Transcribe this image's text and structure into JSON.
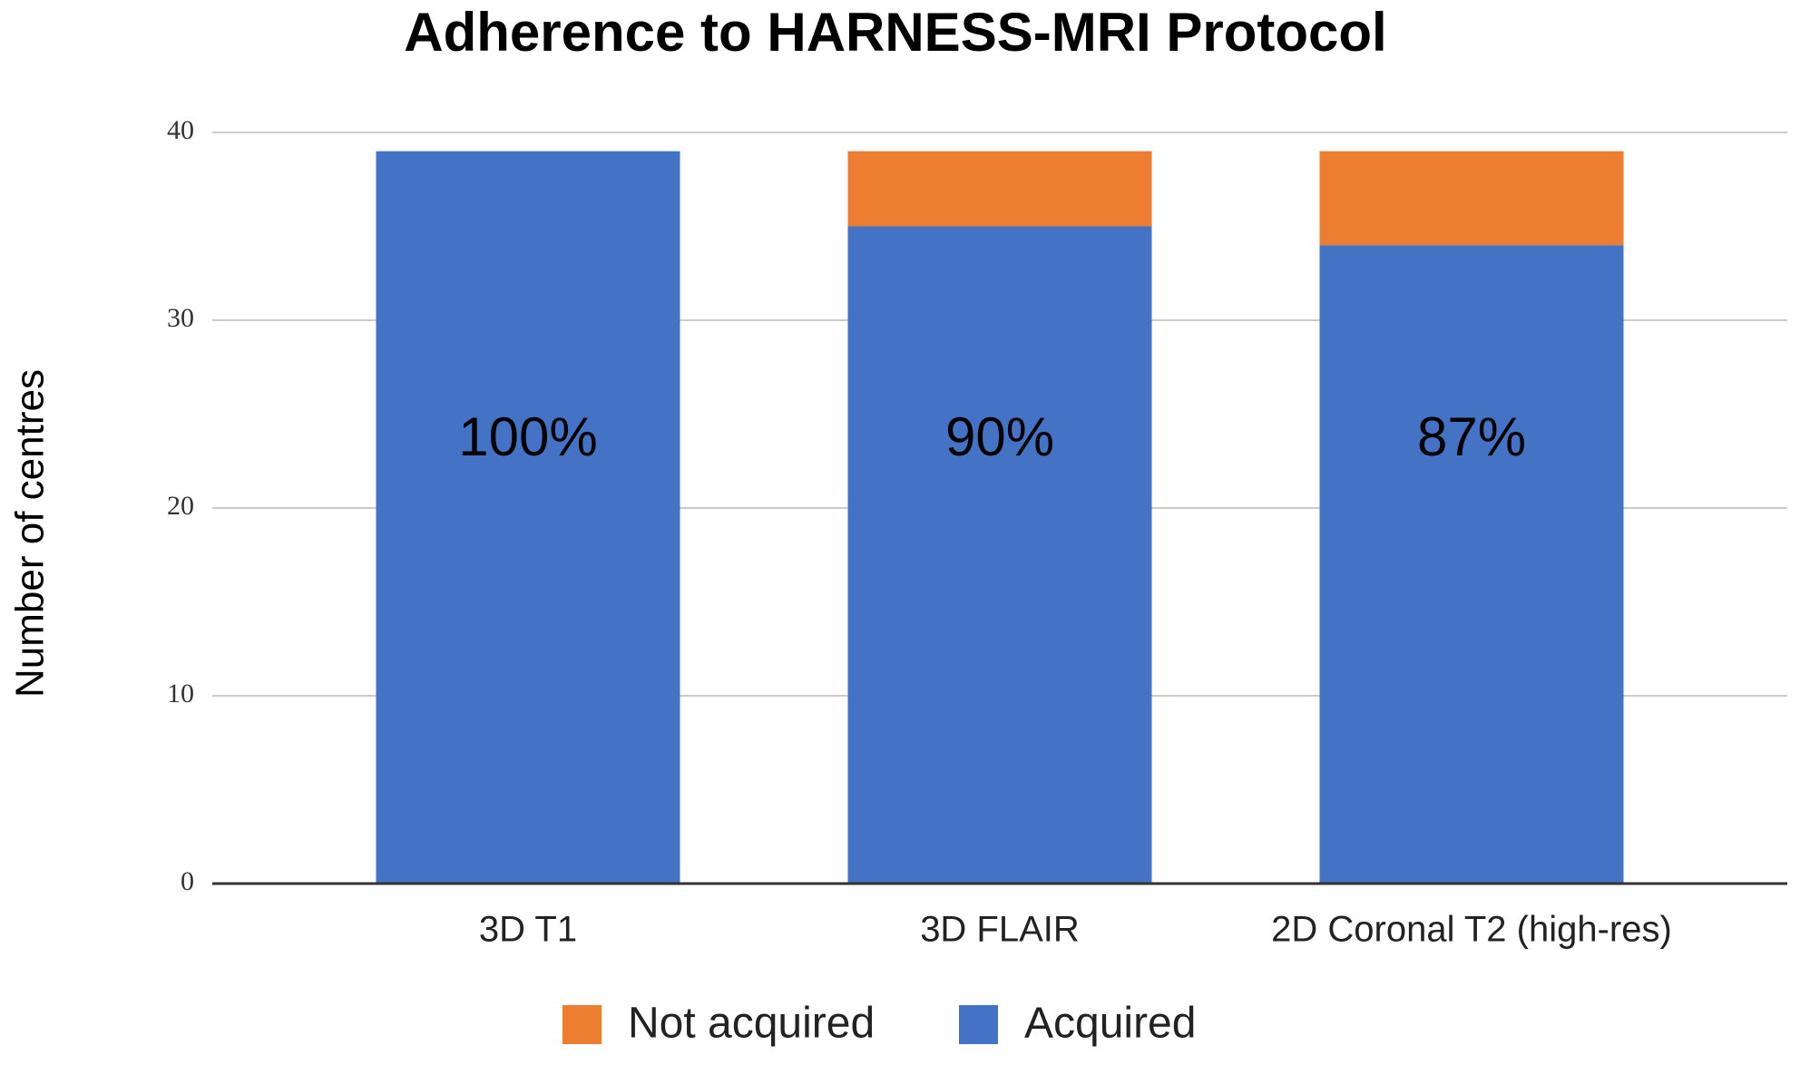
{
  "chart_data": {
    "type": "stacked_bar",
    "title": "Adherence to HARNESS-MRI Protocol",
    "y_label": "Number of centres",
    "categories": [
      "3D T1",
      "3D FLAIR",
      "2D Coronal T2 (high-res)"
    ],
    "series": [
      {
        "name": "Acquired",
        "color": "#4472c4",
        "values": [
          39,
          35,
          34
        ]
      },
      {
        "name": "Not acquired",
        "color": "#ed7d31",
        "values": [
          0,
          4,
          5
        ]
      }
    ],
    "annotations": [
      "100%",
      "90%",
      "87%"
    ],
    "ylim": [
      0,
      40
    ],
    "yticks": [
      0,
      10,
      20,
      30,
      40
    ],
    "grid": true,
    "legend": "bottom"
  }
}
